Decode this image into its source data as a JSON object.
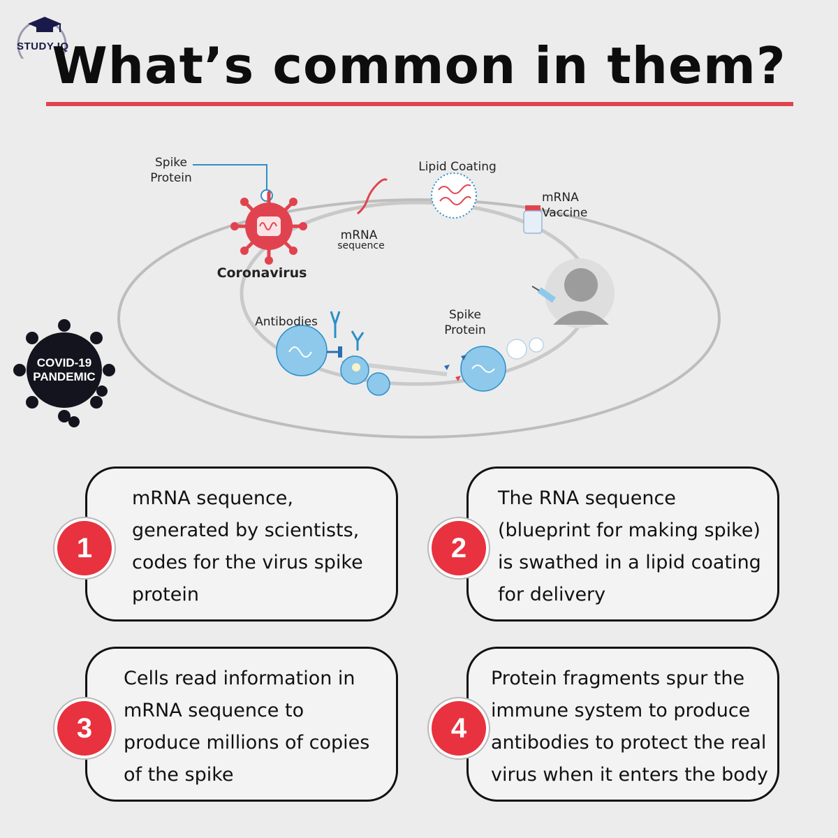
{
  "brand": {
    "logo_text": "STUDY IQ"
  },
  "title": "What’s common in them?",
  "diagram": {
    "labels": {
      "spike_protein_top": "Spike\nProtein",
      "coronavirus": "Coronavirus",
      "mrna_sequence_1": "mRNA",
      "mrna_sequence_2": "sequence",
      "lipid_coating": "Lipid Coating",
      "mrna_vaccine": "mRNA\nVaccine",
      "spike_protein_bottom": "Spike\nProtein",
      "antibodies": "Antibodies"
    },
    "badge": {
      "line1": "COVID-19",
      "line2": "PANDEMIC"
    },
    "colors": {
      "virus": "#e0434f",
      "cell": "#8ec8ea",
      "ring": "#cfcfcf"
    }
  },
  "cards": [
    {
      "number": "1",
      "text": "mRNA sequence,\ngenerated by scientists,\ncodes for the virus spike\nprotein"
    },
    {
      "number": "2",
      "text": "The RNA sequence\n(blueprint for making spike)\nis swathed in a lipid coating\nfor delivery"
    },
    {
      "number": "3",
      "text": "Cells read information in\nmRNA sequence to\nproduce millions of copies\nof the spike"
    },
    {
      "number": "4",
      "text": "Protein fragments spur the\nimmune system to produce\nantibodies to  protect the real\nvirus when it enters the body"
    }
  ]
}
